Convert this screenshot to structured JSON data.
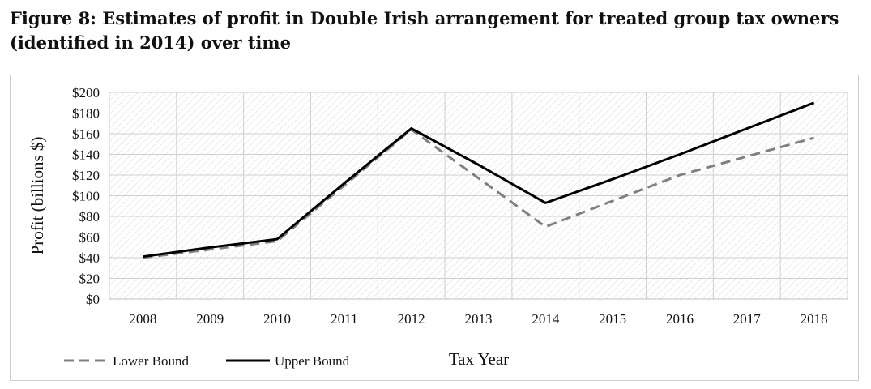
{
  "figure": {
    "title": "Figure 8: Estimates of profit in Double Irish arrangement for treated group tax owners (identified in 2014) over time"
  },
  "chart_data": {
    "type": "line",
    "x": [
      "2008",
      "2009",
      "2010",
      "2011",
      "2012",
      "2013",
      "2014",
      "2015",
      "2016",
      "2017",
      "2018"
    ],
    "xlabel": "Tax Year",
    "ylabel": "Profit (billions $)",
    "ylim": [
      0,
      200
    ],
    "yticks": [
      "$0",
      "$20",
      "$40",
      "$60",
      "$80",
      "$100",
      "$120",
      "$140",
      "$160",
      "$180",
      "$200"
    ],
    "grid": true,
    "legend_position": "bottom-left",
    "series": [
      {
        "name": "Lower Bound",
        "style": "dashed",
        "color": "#808080",
        "values": [
          40,
          48,
          56,
          110,
          164,
          117,
          70,
          95,
          120,
          138,
          156
        ]
      },
      {
        "name": "Upper Bound",
        "style": "solid",
        "color": "#000000",
        "values": [
          41,
          50,
          58,
          112,
          165,
          130,
          93,
          116,
          140,
          165,
          190
        ]
      }
    ]
  }
}
